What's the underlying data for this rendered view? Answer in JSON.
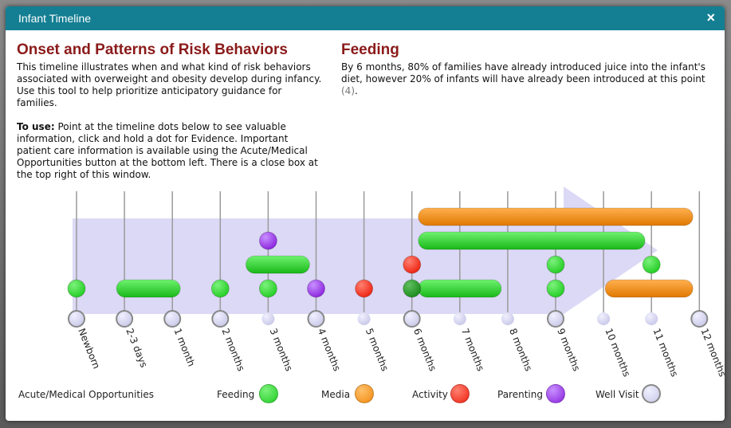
{
  "window": {
    "title": "Infant Timeline",
    "close_glyph": "×"
  },
  "left": {
    "heading": "Onset and Patterns of Risk Behaviors",
    "intro": "This timeline illustrates when and what kind of risk behaviors associated with overweight and obesity develop during infancy. Use this tool to help prioritize anticipatory guidance for families.",
    "to_use_label": "To use:",
    "to_use_text": " Point at the timeline dots below to see valuable information, click and hold a dot for Evidence. Important patient care information is available using the Acute/Medical Opportunities button at the bottom left. There is a close box at the top right of this window."
  },
  "right": {
    "heading": "Feeding",
    "text": "By 6 months, 80% of families have already introduced juice into the infant's diet, however 20% of infants will have already been introduced at this point ",
    "citation": "(4)",
    "citation_suffix": "."
  },
  "colors": {
    "feeding": "#22cc22",
    "media": "#f08a10",
    "activity": "#ee2211",
    "parenting": "#8a22dd",
    "wellvisit": "#c8c8e8",
    "arrow": "#d6d2f5",
    "title_bar": "#147f93",
    "heading": "#8b1a1a"
  },
  "timeline": {
    "ticks": [
      "Newborn",
      "2-3 days",
      "1 month",
      "2 months",
      "3 months",
      "4 months",
      "5 months",
      "6 months",
      "7 months",
      "8 months",
      "9 months",
      "10 months",
      "11 months",
      "12 months"
    ],
    "large_visit_dots": [
      0,
      1,
      2,
      3,
      5,
      7,
      10,
      13
    ],
    "dots": [
      {
        "type": "feeding",
        "tick": 0,
        "row": 0
      },
      {
        "type": "feeding",
        "tick": 3,
        "row": 0
      },
      {
        "type": "feeding",
        "tick": 4,
        "row": 0
      },
      {
        "type": "parenting",
        "tick": 4,
        "row": 2
      },
      {
        "type": "parenting",
        "tick": 5,
        "row": 0
      },
      {
        "type": "activity",
        "tick": 6,
        "row": 0
      },
      {
        "type": "feeding",
        "tick": 7,
        "row": 0,
        "dark": true
      },
      {
        "type": "activity",
        "tick": 7,
        "row": 1
      },
      {
        "type": "feeding",
        "tick": 10,
        "row": 0
      },
      {
        "type": "feeding",
        "tick": 10,
        "row": 1
      },
      {
        "type": "feeding",
        "tick": 12,
        "row": 1
      }
    ],
    "bars": [
      {
        "type": "feeding",
        "start": 1,
        "end": 2,
        "row": 0
      },
      {
        "type": "feeding",
        "start": 3.7,
        "end": 4.7,
        "row": 1
      },
      {
        "type": "feeding",
        "start": 7.3,
        "end": 8.7,
        "row": 0
      },
      {
        "type": "feeding",
        "start": 7.3,
        "end": 11.7,
        "row": 2
      },
      {
        "type": "media",
        "start": 7.3,
        "end": 12.7,
        "row": 3
      },
      {
        "type": "media",
        "start": 11.2,
        "end": 12.7,
        "row": 0
      }
    ]
  },
  "legend": {
    "acute_label": "Acute/Medical Opportunities",
    "feeding": "Feeding",
    "media": "Media",
    "activity": "Activity",
    "parenting": "Parenting",
    "wellvisit": "Well Visit"
  }
}
